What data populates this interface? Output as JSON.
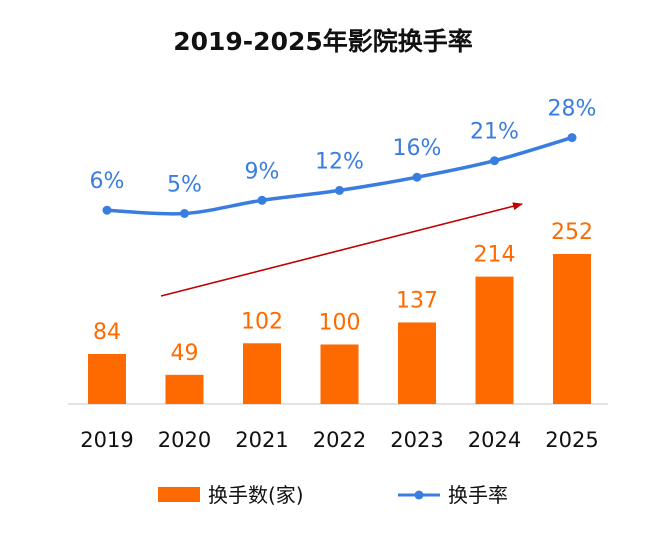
{
  "chart_data": {
    "type": "bar",
    "title": "2019-2025年影院换手率",
    "categories": [
      "2019",
      "2020",
      "2021",
      "2022",
      "2023",
      "2024",
      "2025"
    ],
    "series": [
      {
        "name": "换手数(家)",
        "type": "bar",
        "values": [
          84,
          49,
          102,
          100,
          137,
          214,
          252
        ],
        "labels": [
          "84",
          "49",
          "102",
          "100",
          "137",
          "214",
          "252"
        ],
        "color": "#ff6a00"
      },
      {
        "name": "换手率",
        "type": "line",
        "values": [
          6,
          5,
          9,
          12,
          16,
          21,
          28
        ],
        "labels": [
          "6%",
          "5%",
          "9%",
          "12%",
          "16%",
          "21%",
          "28%"
        ],
        "color": "#3a7de0"
      }
    ],
    "trend_arrow_color": "#c00000",
    "legend_position": "bottom",
    "grid": false
  }
}
